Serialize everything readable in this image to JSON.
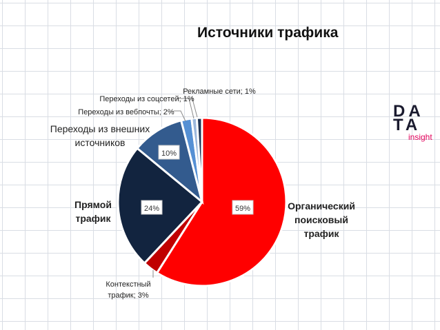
{
  "title": "Источники трафика",
  "logo": {
    "line1": "DA",
    "line2": "TA",
    "sub": "insight"
  },
  "chart_data": {
    "type": "pie",
    "title": "Источники трафика",
    "slices": [
      {
        "name": "Органический поисковый трафик",
        "label_lines": [
          "Органический",
          "поисковый",
          "трафик"
        ],
        "value": 59,
        "data_label": "59%",
        "color": "#ff0000"
      },
      {
        "name": "Контекстный трафик",
        "label_lines": [
          "Контекстный",
          "трафик; 3%"
        ],
        "value": 3,
        "color": "#c00000"
      },
      {
        "name": "Прямой трафик",
        "label_lines": [
          "Прямой",
          "трафик"
        ],
        "value": 24,
        "data_label": "24%",
        "color": "#12243f"
      },
      {
        "name": "Переходы из внешних источников",
        "label_lines": [
          "Переходы из внешних",
          "источников"
        ],
        "value": 10,
        "data_label": "10%",
        "color": "#335b8e"
      },
      {
        "name": "Переходы из вебпочты",
        "label_lines": [
          "Переходы из вебпочты; 2%"
        ],
        "value": 2,
        "color": "#5590d4"
      },
      {
        "name": "Переходы из соцсетей",
        "label_lines": [
          "Переходы из соцсетей; 1%"
        ],
        "value": 1,
        "color": "#9cb8dc"
      },
      {
        "name": "Рекламные сети",
        "label_lines": [
          "Рекламные сети; 1%"
        ],
        "value": 1,
        "color": "#1f3555"
      }
    ],
    "legend": "none"
  }
}
